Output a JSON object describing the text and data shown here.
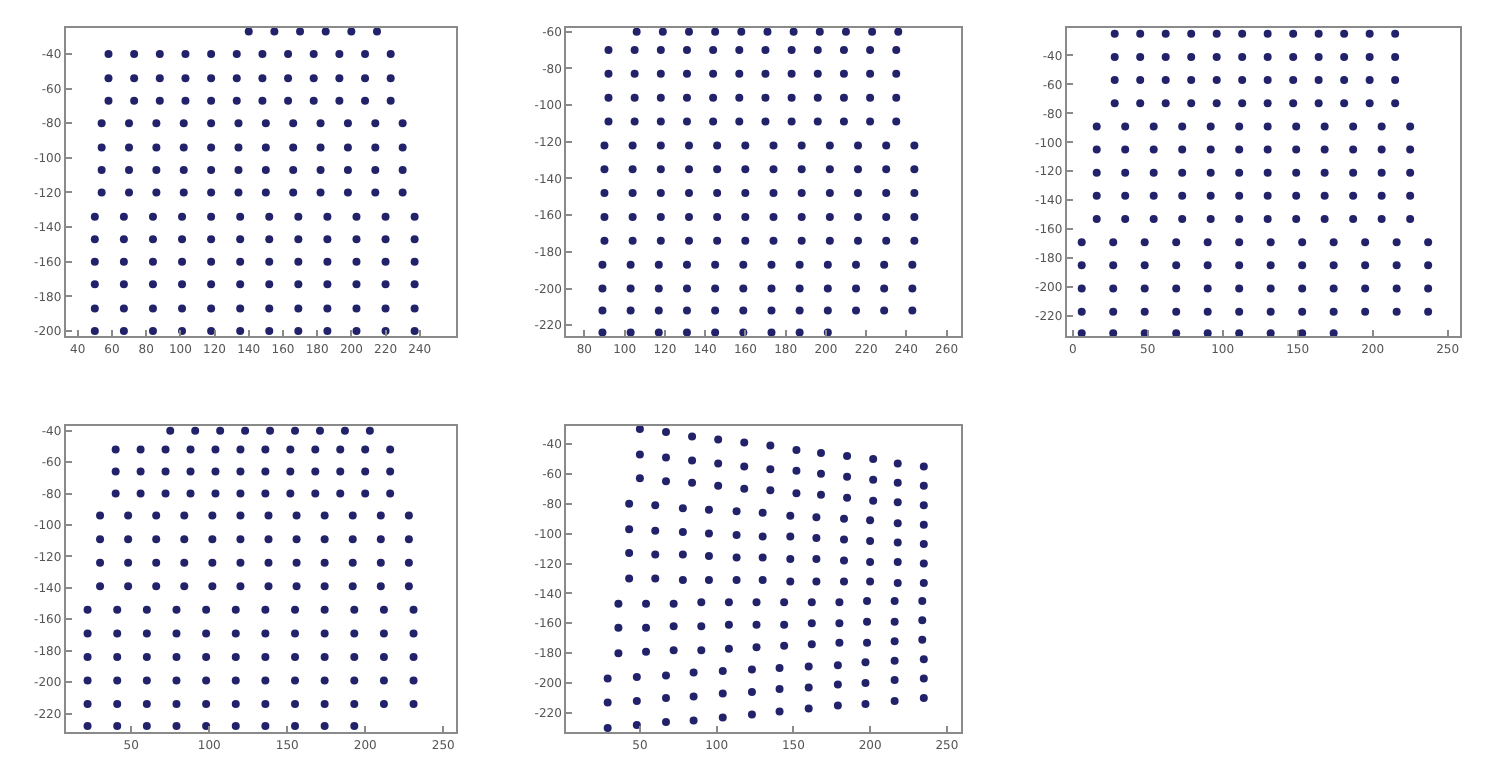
{
  "chart_data": [
    {
      "type": "scatter",
      "marker": "circle",
      "xlim": [
        33,
        261
      ],
      "ylim": [
        -203,
        -25
      ],
      "xticks": [
        40,
        60,
        80,
        100,
        120,
        140,
        160,
        180,
        200,
        220,
        240
      ],
      "yticks": [
        -40,
        -60,
        -80,
        -100,
        -120,
        -140,
        -160,
        -180,
        -200
      ],
      "series": [
        {
          "color": "#22226a",
          "x": [
            140,
            155,
            170,
            185,
            200,
            215,
            58,
            73,
            88,
            103,
            118,
            133,
            148,
            163,
            178,
            193,
            208,
            223,
            58,
            73,
            88,
            103,
            118,
            133,
            148,
            163,
            178,
            193,
            208,
            223,
            58,
            73,
            88,
            103,
            118,
            133,
            148,
            163,
            178,
            193,
            208,
            223,
            54,
            70,
            86,
            102,
            118,
            134,
            150,
            166,
            182,
            198,
            214,
            230,
            54,
            70,
            86,
            102,
            118,
            134,
            150,
            166,
            182,
            198,
            214,
            230,
            54,
            70,
            86,
            102,
            118,
            134,
            150,
            166,
            182,
            198,
            214,
            230,
            54,
            70,
            86,
            102,
            118,
            134,
            150,
            166,
            182,
            198,
            214,
            230,
            50,
            67,
            84,
            101,
            118,
            135,
            152,
            169,
            186,
            203,
            220,
            237,
            50,
            67,
            84,
            101,
            118,
            135,
            152,
            169,
            186,
            203,
            220,
            237,
            50,
            67,
            84,
            101,
            118,
            135,
            152,
            169,
            186,
            203,
            220,
            237,
            50,
            67,
            84,
            101,
            118,
            135,
            152,
            169,
            186,
            203,
            220,
            237,
            50,
            67,
            84,
            101,
            118,
            135,
            152,
            169,
            186,
            203,
            220,
            237,
            50,
            67,
            84,
            101,
            118,
            135,
            152,
            169,
            186,
            203,
            220,
            237
          ],
          "values": [
            -27,
            -27,
            -27,
            -27,
            -27,
            -27,
            -40,
            -40,
            -40,
            -40,
            -40,
            -40,
            -40,
            -40,
            -40,
            -40,
            -40,
            -40,
            -54,
            -54,
            -54,
            -54,
            -54,
            -54,
            -54,
            -54,
            -54,
            -54,
            -54,
            -54,
            -67,
            -67,
            -67,
            -67,
            -67,
            -67,
            -67,
            -67,
            -67,
            -67,
            -67,
            -67,
            -80,
            -80,
            -80,
            -80,
            -80,
            -80,
            -80,
            -80,
            -80,
            -80,
            -80,
            -80,
            -94,
            -94,
            -94,
            -94,
            -94,
            -94,
            -94,
            -94,
            -94,
            -94,
            -94,
            -94,
            -107,
            -107,
            -107,
            -107,
            -107,
            -107,
            -107,
            -107,
            -107,
            -107,
            -107,
            -107,
            -120,
            -120,
            -120,
            -120,
            -120,
            -120,
            -120,
            -120,
            -120,
            -120,
            -120,
            -120,
            -134,
            -134,
            -134,
            -134,
            -134,
            -134,
            -134,
            -134,
            -134,
            -134,
            -134,
            -134,
            -147,
            -147,
            -147,
            -147,
            -147,
            -147,
            -147,
            -147,
            -147,
            -147,
            -147,
            -147,
            -160,
            -160,
            -160,
            -160,
            -160,
            -160,
            -160,
            -160,
            -160,
            -160,
            -160,
            -160,
            -173,
            -173,
            -173,
            -173,
            -173,
            -173,
            -173,
            -173,
            -173,
            -173,
            -173,
            -173,
            -187,
            -187,
            -187,
            -187,
            -187,
            -187,
            -187,
            -187,
            -187,
            -187,
            -187,
            -187,
            -200,
            -200,
            -200,
            -200,
            -200,
            -200,
            -200,
            -200,
            -200,
            -200,
            -200,
            -200
          ]
        }
      ]
    },
    {
      "type": "scatter",
      "marker": "circle",
      "xlim": [
        71,
        267
      ],
      "ylim": [
        -226,
        -58
      ],
      "xticks": [
        80,
        100,
        120,
        140,
        160,
        180,
        200,
        220,
        240,
        260
      ],
      "yticks": [
        -60,
        -80,
        -100,
        -120,
        -140,
        -160,
        -180,
        -200,
        -220
      ],
      "series": [
        {
          "color": "#22226a",
          "x": [
            106,
            119,
            132,
            145,
            158,
            171,
            184,
            197,
            210,
            223,
            236,
            92,
            105,
            118,
            131,
            144,
            157,
            170,
            183,
            196,
            209,
            222,
            235,
            92,
            105,
            118,
            131,
            144,
            157,
            170,
            183,
            196,
            209,
            222,
            235,
            92,
            105,
            118,
            131,
            144,
            157,
            170,
            183,
            196,
            209,
            222,
            235,
            92,
            105,
            118,
            131,
            144,
            157,
            170,
            183,
            196,
            209,
            222,
            235,
            90,
            104,
            118,
            132,
            146,
            160,
            174,
            188,
            202,
            216,
            230,
            244,
            90,
            104,
            118,
            132,
            146,
            160,
            174,
            188,
            202,
            216,
            230,
            244,
            90,
            104,
            118,
            132,
            146,
            160,
            174,
            188,
            202,
            216,
            230,
            244,
            90,
            104,
            118,
            132,
            146,
            160,
            174,
            188,
            202,
            216,
            230,
            244,
            90,
            104,
            118,
            132,
            146,
            160,
            174,
            188,
            202,
            216,
            230,
            244,
            89,
            103,
            117,
            131,
            145,
            159,
            173,
            187,
            201,
            215,
            229,
            243,
            89,
            103,
            117,
            131,
            145,
            159,
            173,
            187,
            201,
            215,
            229,
            243,
            89,
            103,
            117,
            131,
            145,
            159,
            173,
            187,
            201,
            215,
            229,
            243,
            89,
            103,
            117,
            131,
            145,
            159,
            173,
            187,
            201
          ],
          "values": [
            -60,
            -60,
            -60,
            -60,
            -60,
            -60,
            -60,
            -60,
            -60,
            -60,
            -60,
            -70,
            -70,
            -70,
            -70,
            -70,
            -70,
            -70,
            -70,
            -70,
            -70,
            -70,
            -70,
            -83,
            -83,
            -83,
            -83,
            -83,
            -83,
            -83,
            -83,
            -83,
            -83,
            -83,
            -83,
            -96,
            -96,
            -96,
            -96,
            -96,
            -96,
            -96,
            -96,
            -96,
            -96,
            -96,
            -96,
            -109,
            -109,
            -109,
            -109,
            -109,
            -109,
            -109,
            -109,
            -109,
            -109,
            -109,
            -109,
            -122,
            -122,
            -122,
            -122,
            -122,
            -122,
            -122,
            -122,
            -122,
            -122,
            -122,
            -122,
            -135,
            -135,
            -135,
            -135,
            -135,
            -135,
            -135,
            -135,
            -135,
            -135,
            -135,
            -135,
            -148,
            -148,
            -148,
            -148,
            -148,
            -148,
            -148,
            -148,
            -148,
            -148,
            -148,
            -148,
            -161,
            -161,
            -161,
            -161,
            -161,
            -161,
            -161,
            -161,
            -161,
            -161,
            -161,
            -161,
            -174,
            -174,
            -174,
            -174,
            -174,
            -174,
            -174,
            -174,
            -174,
            -174,
            -174,
            -174,
            -187,
            -187,
            -187,
            -187,
            -187,
            -187,
            -187,
            -187,
            -187,
            -187,
            -187,
            -187,
            -200,
            -200,
            -200,
            -200,
            -200,
            -200,
            -200,
            -200,
            -200,
            -200,
            -200,
            -200,
            -212,
            -212,
            -212,
            -212,
            -212,
            -212,
            -212,
            -212,
            -212,
            -212,
            -212,
            -212,
            -224,
            -224,
            -224,
            -224,
            -224,
            -224,
            -224,
            -224,
            -224
          ]
        }
      ]
    },
    {
      "type": "scatter",
      "marker": "circle",
      "xlim": [
        -4,
        258
      ],
      "ylim": [
        -234,
        -21
      ],
      "xticks": [
        0,
        50,
        100,
        150,
        200,
        250
      ],
      "yticks": [
        -40,
        -60,
        -80,
        -100,
        -120,
        -140,
        -160,
        -180,
        -200,
        -220
      ],
      "series": [
        {
          "color": "#22226a",
          "x": [
            28,
            45,
            62,
            79,
            96,
            113,
            130,
            147,
            164,
            181,
            198,
            215,
            28,
            45,
            62,
            79,
            96,
            113,
            130,
            147,
            164,
            181,
            198,
            215,
            28,
            45,
            62,
            79,
            96,
            113,
            130,
            147,
            164,
            181,
            198,
            215,
            28,
            45,
            62,
            79,
            96,
            113,
            130,
            147,
            164,
            181,
            198,
            215,
            16,
            35,
            54,
            73,
            92,
            111,
            130,
            149,
            168,
            187,
            206,
            225,
            16,
            35,
            54,
            73,
            92,
            111,
            130,
            149,
            168,
            187,
            206,
            225,
            16,
            35,
            54,
            73,
            92,
            111,
            130,
            149,
            168,
            187,
            206,
            225,
            16,
            35,
            54,
            73,
            92,
            111,
            130,
            149,
            168,
            187,
            206,
            225,
            16,
            35,
            54,
            73,
            92,
            111,
            130,
            149,
            168,
            187,
            206,
            225,
            6,
            27,
            48,
            69,
            90,
            111,
            132,
            153,
            174,
            195,
            216,
            237,
            6,
            27,
            48,
            69,
            90,
            111,
            132,
            153,
            174,
            195,
            216,
            237,
            6,
            27,
            48,
            69,
            90,
            111,
            132,
            153,
            174,
            195,
            216,
            237,
            6,
            27,
            48,
            69,
            90,
            111,
            132,
            153,
            174,
            195,
            216,
            237,
            6,
            27,
            48,
            69,
            90,
            111,
            132,
            153,
            174
          ],
          "values": [
            -25,
            -25,
            -25,
            -25,
            -25,
            -25,
            -25,
            -25,
            -25,
            -25,
            -25,
            -25,
            -41,
            -41,
            -41,
            -41,
            -41,
            -41,
            -41,
            -41,
            -41,
            -41,
            -41,
            -41,
            -57,
            -57,
            -57,
            -57,
            -57,
            -57,
            -57,
            -57,
            -57,
            -57,
            -57,
            -57,
            -73,
            -73,
            -73,
            -73,
            -73,
            -73,
            -73,
            -73,
            -73,
            -73,
            -73,
            -73,
            -89,
            -89,
            -89,
            -89,
            -89,
            -89,
            -89,
            -89,
            -89,
            -89,
            -89,
            -89,
            -105,
            -105,
            -105,
            -105,
            -105,
            -105,
            -105,
            -105,
            -105,
            -105,
            -105,
            -105,
            -121,
            -121,
            -121,
            -121,
            -121,
            -121,
            -121,
            -121,
            -121,
            -121,
            -121,
            -121,
            -137,
            -137,
            -137,
            -137,
            -137,
            -137,
            -137,
            -137,
            -137,
            -137,
            -137,
            -137,
            -153,
            -153,
            -153,
            -153,
            -153,
            -153,
            -153,
            -153,
            -153,
            -153,
            -153,
            -153,
            -169,
            -169,
            -169,
            -169,
            -169,
            -169,
            -169,
            -169,
            -169,
            -169,
            -169,
            -169,
            -185,
            -185,
            -185,
            -185,
            -185,
            -185,
            -185,
            -185,
            -185,
            -185,
            -185,
            -185,
            -201,
            -201,
            -201,
            -201,
            -201,
            -201,
            -201,
            -201,
            -201,
            -201,
            -201,
            -201,
            -217,
            -217,
            -217,
            -217,
            -217,
            -217,
            -217,
            -217,
            -217,
            -217,
            -217,
            -217,
            -232,
            -232,
            -232,
            -232,
            -232,
            -232,
            -232,
            -232,
            -232
          ]
        }
      ]
    },
    {
      "type": "scatter",
      "marker": "circle",
      "xlim": [
        8,
        258
      ],
      "ylim": [
        -232,
        -37
      ],
      "xticks": [
        50,
        100,
        150,
        200,
        250
      ],
      "yticks": [
        -40,
        -60,
        -80,
        -100,
        -120,
        -140,
        -160,
        -180,
        -200,
        -220
      ],
      "series": [
        {
          "color": "#22226a",
          "x": [
            75,
            91,
            107,
            123,
            139,
            155,
            171,
            187,
            203,
            40,
            56,
            72,
            88,
            104,
            120,
            136,
            152,
            168,
            184,
            200,
            216,
            40,
            56,
            72,
            88,
            104,
            120,
            136,
            152,
            168,
            184,
            200,
            216,
            40,
            56,
            72,
            88,
            104,
            120,
            136,
            152,
            168,
            184,
            200,
            216,
            30,
            48,
            66,
            84,
            102,
            120,
            138,
            156,
            174,
            192,
            210,
            228,
            30,
            48,
            66,
            84,
            102,
            120,
            138,
            156,
            174,
            192,
            210,
            228,
            30,
            48,
            66,
            84,
            102,
            120,
            138,
            156,
            174,
            192,
            210,
            228,
            30,
            48,
            66,
            84,
            102,
            120,
            138,
            156,
            174,
            192,
            210,
            228,
            22,
            41,
            60,
            79,
            98,
            117,
            136,
            155,
            174,
            193,
            212,
            231,
            22,
            41,
            60,
            79,
            98,
            117,
            136,
            155,
            174,
            193,
            212,
            231,
            22,
            41,
            60,
            79,
            98,
            117,
            136,
            155,
            174,
            193,
            212,
            231,
            22,
            41,
            60,
            79,
            98,
            117,
            136,
            155,
            174,
            193,
            212,
            231,
            22,
            41,
            60,
            79,
            98,
            117,
            136,
            155,
            174,
            193,
            212,
            231,
            22,
            41,
            60,
            79,
            98,
            117,
            136,
            155,
            174,
            193
          ],
          "values": [
            -40,
            -40,
            -40,
            -40,
            -40,
            -40,
            -40,
            -40,
            -40,
            -52,
            -52,
            -52,
            -52,
            -52,
            -52,
            -52,
            -52,
            -52,
            -52,
            -52,
            -52,
            -66,
            -66,
            -66,
            -66,
            -66,
            -66,
            -66,
            -66,
            -66,
            -66,
            -66,
            -66,
            -80,
            -80,
            -80,
            -80,
            -80,
            -80,
            -80,
            -80,
            -80,
            -80,
            -80,
            -80,
            -94,
            -94,
            -94,
            -94,
            -94,
            -94,
            -94,
            -94,
            -94,
            -94,
            -94,
            -94,
            -109,
            -109,
            -109,
            -109,
            -109,
            -109,
            -109,
            -109,
            -109,
            -109,
            -109,
            -109,
            -124,
            -124,
            -124,
            -124,
            -124,
            -124,
            -124,
            -124,
            -124,
            -124,
            -124,
            -124,
            -139,
            -139,
            -139,
            -139,
            -139,
            -139,
            -139,
            -139,
            -139,
            -139,
            -139,
            -139,
            -154,
            -154,
            -154,
            -154,
            -154,
            -154,
            -154,
            -154,
            -154,
            -154,
            -154,
            -154,
            -169,
            -169,
            -169,
            -169,
            -169,
            -169,
            -169,
            -169,
            -169,
            -169,
            -169,
            -169,
            -184,
            -184,
            -184,
            -184,
            -184,
            -184,
            -184,
            -184,
            -184,
            -184,
            -184,
            -184,
            -199,
            -199,
            -199,
            -199,
            -199,
            -199,
            -199,
            -199,
            -199,
            -199,
            -199,
            -199,
            -214,
            -214,
            -214,
            -214,
            -214,
            -214,
            -214,
            -214,
            -214,
            -214,
            -214,
            -214,
            -228,
            -228,
            -228,
            -228,
            -228,
            -228,
            -228,
            -228,
            -228,
            -228
          ]
        }
      ]
    },
    {
      "type": "scatter",
      "marker": "circle",
      "xlim": [
        2,
        259
      ],
      "ylim": [
        -233,
        -28
      ],
      "xticks": [
        50,
        100,
        150,
        200,
        250
      ],
      "yticks": [
        -40,
        -60,
        -80,
        -100,
        -120,
        -140,
        -160,
        -180,
        -200,
        -220
      ],
      "series": [
        {
          "color": "#22226a",
          "x": [
            50,
            67,
            84,
            101,
            118,
            135,
            152,
            168,
            185,
            202,
            218,
            235,
            50,
            67,
            84,
            101,
            118,
            135,
            152,
            168,
            185,
            202,
            218,
            235,
            50,
            67,
            84,
            101,
            118,
            135,
            152,
            168,
            185,
            202,
            218,
            235,
            43,
            60,
            78,
            95,
            113,
            130,
            148,
            165,
            183,
            200,
            218,
            235,
            43,
            60,
            78,
            95,
            113,
            130,
            148,
            165,
            183,
            200,
            218,
            235,
            43,
            60,
            78,
            95,
            113,
            130,
            148,
            165,
            183,
            200,
            218,
            235,
            43,
            60,
            78,
            95,
            113,
            130,
            148,
            165,
            183,
            200,
            218,
            235,
            36,
            54,
            72,
            90,
            108,
            126,
            144,
            162,
            180,
            198,
            216,
            234,
            36,
            54,
            72,
            90,
            108,
            126,
            144,
            162,
            180,
            198,
            216,
            234,
            36,
            54,
            72,
            90,
            108,
            126,
            144,
            162,
            180,
            198,
            216,
            234,
            29,
            48,
            67,
            85,
            104,
            123,
            141,
            160,
            179,
            197,
            216,
            235,
            29,
            48,
            67,
            85,
            104,
            123,
            141,
            160,
            179,
            197,
            216,
            235,
            29,
            48,
            67,
            85,
            104,
            123,
            141,
            160,
            179,
            197,
            216,
            235
          ],
          "values": [
            -30,
            -32,
            -35,
            -37,
            -39,
            -41,
            -44,
            -46,
            -48,
            -50,
            -53,
            -55,
            -47,
            -49,
            -51,
            -53,
            -55,
            -57,
            -58,
            -60,
            -62,
            -64,
            -66,
            -68,
            -63,
            -65,
            -66,
            -68,
            -70,
            -71,
            -73,
            -74,
            -76,
            -78,
            -79,
            -81,
            -80,
            -81,
            -83,
            -84,
            -85,
            -86,
            -88,
            -89,
            -90,
            -91,
            -93,
            -94,
            -97,
            -98,
            -99,
            -100,
            -101,
            -102,
            -102,
            -103,
            -104,
            -105,
            -106,
            -107,
            -113,
            -114,
            -114,
            -115,
            -116,
            -116,
            -117,
            -117,
            -118,
            -119,
            -119,
            -120,
            -130,
            -130,
            -131,
            -131,
            -131,
            -131,
            -132,
            -132,
            -132,
            -132,
            -133,
            -133,
            -147,
            -147,
            -147,
            -146,
            -146,
            -146,
            -146,
            -146,
            -146,
            -145,
            -145,
            -145,
            -163,
            -163,
            -162,
            -162,
            -161,
            -161,
            -161,
            -160,
            -160,
            -159,
            -159,
            -158,
            -180,
            -179,
            -178,
            -178,
            -177,
            -176,
            -175,
            -174,
            -173,
            -173,
            -172,
            -171,
            -197,
            -196,
            -195,
            -193,
            -192,
            -191,
            -190,
            -189,
            -188,
            -186,
            -185,
            -184,
            -213,
            -212,
            -210,
            -209,
            -207,
            -206,
            -204,
            -203,
            -201,
            -200,
            -198,
            -197,
            -230,
            -228,
            -226,
            -225,
            -223,
            -221,
            -219,
            -217,
            -215,
            -214,
            -212,
            -210
          ]
        }
      ]
    }
  ]
}
